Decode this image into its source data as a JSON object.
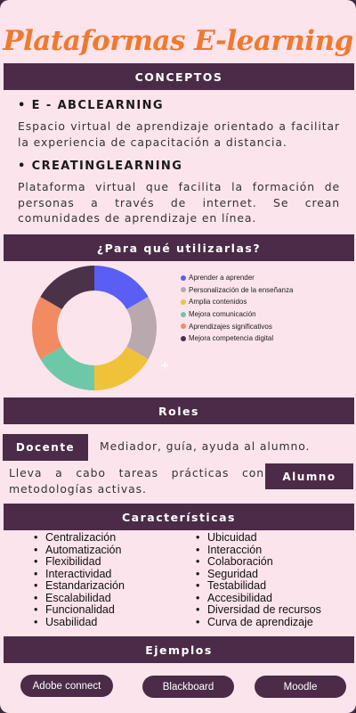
{
  "title": "Plataformas E-learning",
  "sections": {
    "conceptos": "CONCEPTOS",
    "para_que": "¿Para qué utilizarlas?",
    "roles": "Roles",
    "caracteristicas": "Características",
    "ejemplos": "Ejemplos"
  },
  "conceptos": [
    {
      "heading": "• E - ABCLEARNING",
      "text": "Espacio virtual de aprendizaje orientado a facilitar la experiencia de capacitación a distancia."
    },
    {
      "heading": "• CREATINGLEARNING",
      "text": "Plataforma virtual que facilita la formación de personas a través de internet. Se crean comunidades de aprendizaje en línea."
    }
  ],
  "chart_data": {
    "type": "pie",
    "donut": true,
    "categories": [
      "Aprender a aprender",
      "Personalización de la enseñanza",
      "Amplia contenidos",
      "Mejora comunicación",
      "Aprendizajes significativos",
      "Mejora competencia digital"
    ],
    "values": [
      1,
      1,
      1,
      1,
      1,
      1
    ],
    "colors": [
      "#5b5ef5",
      "#b9a8ad",
      "#f0c23a",
      "#6cc8a6",
      "#f28a62",
      "#4a3348"
    ],
    "legend_position": "right"
  },
  "roles": {
    "docente_label": "Docente",
    "docente_text": "Mediador, guía, ayuda al alumno.",
    "alumno_label": "Alumno",
    "alumno_text": "Lleva a cabo tareas prácticas con metodologías activas."
  },
  "caracteristicas": {
    "left": [
      "Centralización",
      "Automatización",
      "Flexibilidad",
      "Interactividad",
      "Estandarización",
      "Escalabilidad",
      "Funcionalidad",
      "Usabilidad"
    ],
    "right": [
      "Ubicuidad",
      "Interacción",
      "Colaboración",
      "Seguridad",
      "Testabilidad",
      "Accesibilidad",
      "Diversidad de recursos",
      "Curva de aprendizaje"
    ]
  },
  "ejemplos": [
    "Adobe connect",
    "Blackboard",
    "Moodle"
  ]
}
